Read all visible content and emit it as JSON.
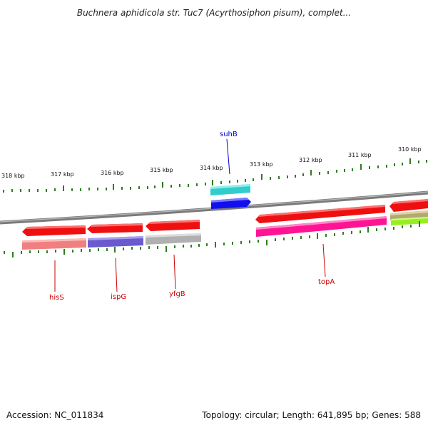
{
  "title": "Buchnera aphidicola str. Tuc7 (Acyrthosiphon pisum), complet...",
  "accession": "Accession: NC_011834",
  "summary": "Topology: circular; Length: 641,895 bp; Genes: 588",
  "scale_labels": [
    "318 kbp",
    "317 kbp",
    "316 kbp",
    "315 kbp",
    "314 kbp",
    "313 kbp",
    "312 kbp",
    "311 kbp",
    "310 kbp"
  ],
  "gene_labels": {
    "suhB": "suhB",
    "hisS": "hisS",
    "ispG": "ispG",
    "yfgB": "yfgB",
    "topA": "topA"
  },
  "colors": {
    "backbone": "#8a8a8a",
    "cds_forward": "#ff0000",
    "cds_reverse": "#ff0000",
    "tick": "#2e7d1e",
    "label_blue": "#0000cc",
    "label_red": "#cc0000"
  }
}
